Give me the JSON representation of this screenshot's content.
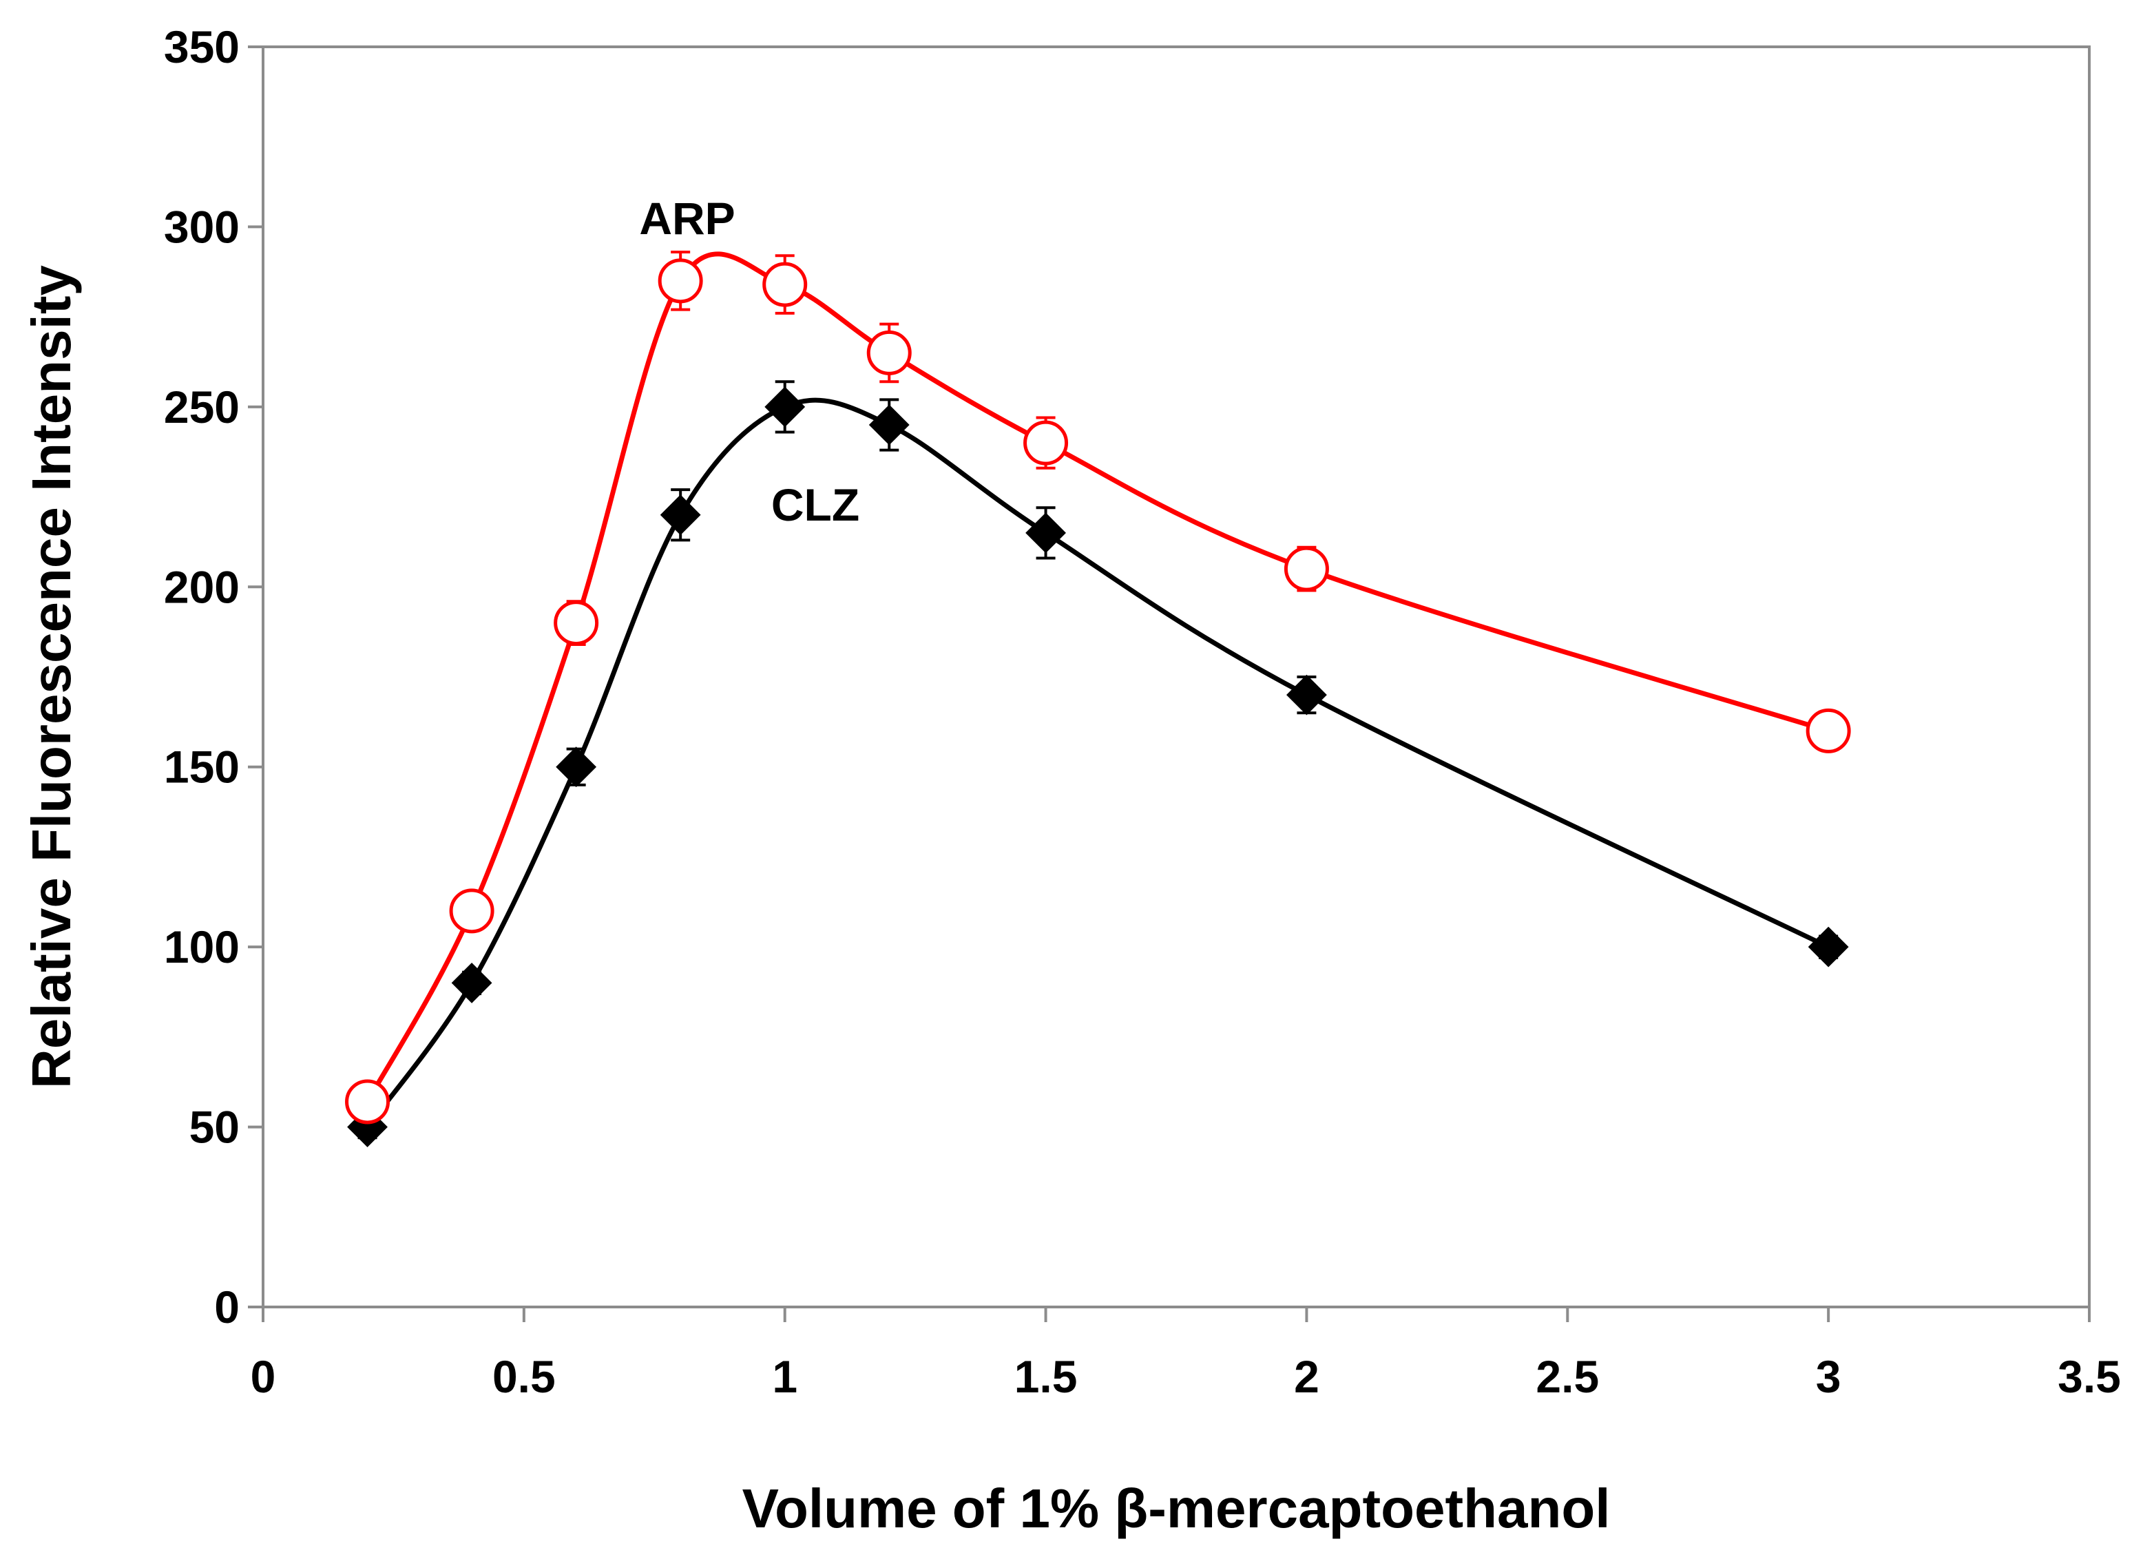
{
  "chart_data": {
    "type": "line",
    "title": "",
    "xlabel": "Volume of 1% β-mercaptoethanol",
    "ylabel": "Relative Fluorescence Intensity",
    "xlim": [
      0,
      3.5
    ],
    "ylim": [
      0,
      350
    ],
    "x_ticks": [
      0,
      0.5,
      1,
      1.5,
      2,
      2.5,
      3,
      3.5
    ],
    "x_tick_labels": [
      "0",
      "0.5",
      "1",
      "1.5",
      "2",
      "2.5",
      "3",
      "3.5"
    ],
    "y_ticks": [
      0,
      50,
      100,
      150,
      200,
      250,
      300,
      350
    ],
    "y_tick_labels": [
      "0",
      "50",
      "100",
      "150",
      "200",
      "250",
      "300",
      "350"
    ],
    "grid": false,
    "legend": "none (inline labels)",
    "series": [
      {
        "name": "ARP",
        "color": "#ff0000",
        "marker": "open-circle",
        "x": [
          0.2,
          0.4,
          0.6,
          0.8,
          1.0,
          1.2,
          1.5,
          2.0,
          3.0
        ],
        "y": [
          57,
          110,
          190,
          285,
          284,
          265,
          240,
          205,
          160
        ],
        "error": [
          5,
          5,
          6,
          8,
          8,
          8,
          7,
          6,
          4
        ]
      },
      {
        "name": "CLZ",
        "color": "#000000",
        "marker": "filled-diamond",
        "x": [
          0.2,
          0.4,
          0.6,
          0.8,
          1.0,
          1.2,
          1.5,
          2.0,
          3.0
        ],
        "y": [
          50,
          90,
          150,
          220,
          250,
          245,
          215,
          170,
          100
        ],
        "error": [
          3,
          3,
          5,
          7,
          7,
          7,
          7,
          5,
          3
        ]
      }
    ],
    "annotations": [
      {
        "text": "ARP",
        "series": "ARP"
      },
      {
        "text": "CLZ",
        "series": "CLZ"
      }
    ]
  }
}
